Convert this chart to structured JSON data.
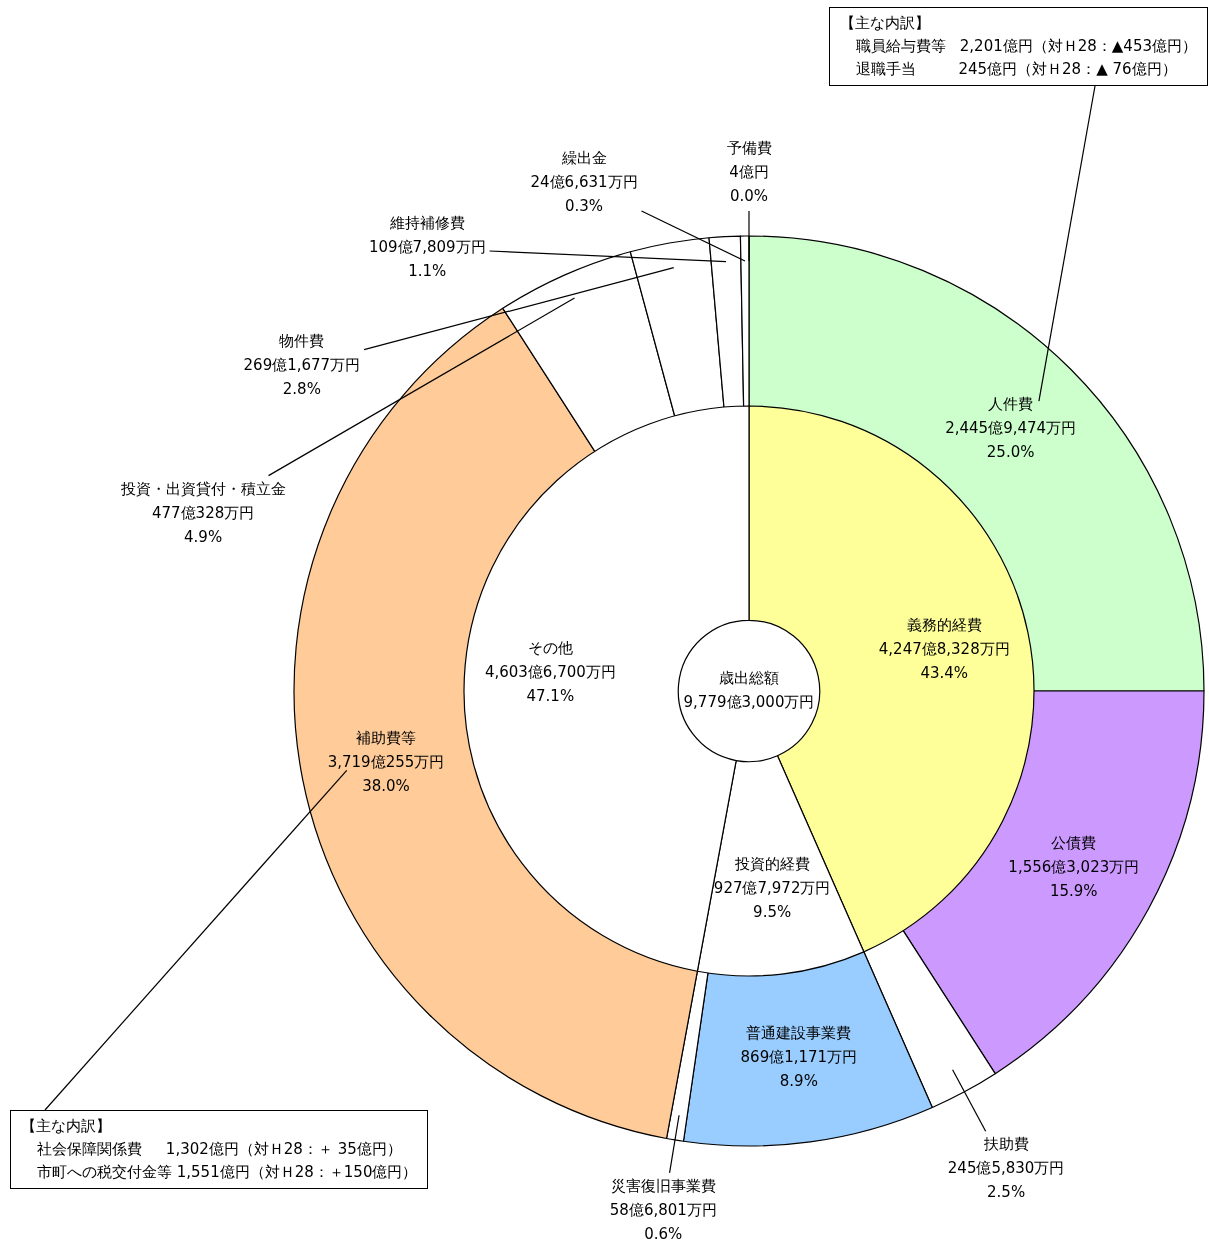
{
  "chart_data": [
    {
      "type": "donut",
      "categories": [
        "義務的経費",
        "投資的経費",
        "その他"
      ],
      "values": [
        43.4,
        9.5,
        47.1
      ],
      "colors": [
        "#ffff99",
        "#ffffff",
        "#ffffff"
      ],
      "value_labels": [
        "4,247億8,328万円\n43.4%",
        "927億7,972万円\n9.5%",
        "4,603億6,700万円\n47.1%"
      ],
      "annotations": [
        "歳出総額\n9,779億3,000万円"
      ]
    },
    {
      "type": "donut",
      "categories": [
        "人件費",
        "公債費",
        "扶助費",
        "普通建設事業費",
        "災害復旧事業費",
        "補助費等",
        "投資・出資貸付・積立金",
        "物件費",
        "維持補修費",
        "繰出金",
        "予備費"
      ],
      "values": [
        25.0,
        15.9,
        2.5,
        8.9,
        0.6,
        38.0,
        4.9,
        2.8,
        1.1,
        0.3,
        0.0
      ],
      "colors": [
        "#ccffcc",
        "#cc99ff",
        "#ffffff",
        "#99ccff",
        "#ffffff",
        "#ffcc99",
        "#ffffff",
        "#ffffff",
        "#ffffff",
        "#ffffff",
        "#ffffff"
      ],
      "value_labels": [
        "2,445億9,474万円\n25.0%",
        "1,556億3,023万円\n15.9%",
        "245億5,830万円\n2.5%",
        "869億1,171万円\n8.9%",
        "58億6,801万円\n0.6%",
        "3,719億255万円\n38.0%",
        "477億328万円\n4.9%",
        "269億1,677万円\n2.8%",
        "109億7,809万円\n1.1%",
        "24億6,631万円\n0.3%",
        "4億円\n0.0%"
      ],
      "annotations": [
        {
          "text": [
            "【主な内訳】",
            "職員給与費等   2,201億円（対Ｈ28：▲453億円）",
            "退職手当         245億円（対Ｈ28：▲ 76億円）"
          ],
          "x": "人件費"
        },
        {
          "text": [
            "【主な内訳】",
            "社会保障関係費     1,302億円（対Ｈ28：＋ 35億円）",
            "市町への税交付金等 1,551億円（対Ｈ28：＋150億円）"
          ],
          "x": "補助費等"
        }
      ]
    }
  ]
}
